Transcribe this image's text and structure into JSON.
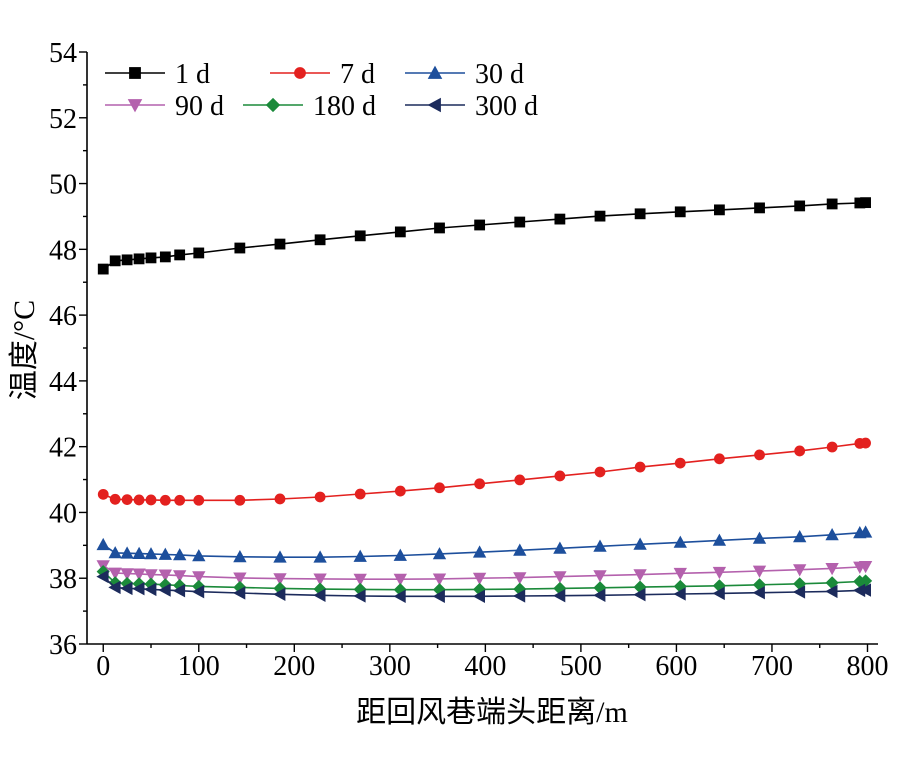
{
  "chart_data": {
    "type": "line",
    "title": "",
    "xlabel": "距回风巷端头距离/m",
    "ylabel": "温度/°C",
    "xlim": [
      -17,
      811
    ],
    "ylim": [
      36,
      54
    ],
    "xticks": [
      0,
      100,
      200,
      300,
      400,
      500,
      600,
      700,
      800
    ],
    "yticks": [
      36,
      38,
      40,
      42,
      44,
      46,
      48,
      50,
      52,
      54
    ],
    "grid": false,
    "legend": {
      "position": "top-left"
    },
    "x": [
      0,
      12.5,
      25,
      37.5,
      50,
      65,
      80,
      100,
      143,
      185,
      227,
      269,
      311,
      352,
      394,
      436,
      478,
      520,
      562,
      604,
      645,
      687,
      729,
      763,
      792,
      798
    ],
    "series": [
      {
        "name": "1 d",
        "color": "#000000",
        "marker": "square",
        "values": [
          47.4,
          47.65,
          47.68,
          47.71,
          47.74,
          47.77,
          47.83,
          47.89,
          48.04,
          48.16,
          48.29,
          48.41,
          48.53,
          48.65,
          48.74,
          48.83,
          48.92,
          49.01,
          49.08,
          49.14,
          49.2,
          49.26,
          49.32,
          49.38,
          49.41,
          49.42
        ]
      },
      {
        "name": "7 d",
        "color": "#e3211f",
        "marker": "circle",
        "values": [
          40.55,
          40.4,
          40.39,
          40.38,
          40.38,
          40.37,
          40.37,
          40.37,
          40.37,
          40.41,
          40.47,
          40.56,
          40.65,
          40.75,
          40.87,
          40.99,
          41.11,
          41.23,
          41.38,
          41.5,
          41.63,
          41.75,
          41.87,
          41.99,
          42.1,
          42.11
        ]
      },
      {
        "name": "30 d",
        "color": "#1d4f9c",
        "marker": "triangle-up",
        "values": [
          39.02,
          38.77,
          38.76,
          38.75,
          38.74,
          38.72,
          38.71,
          38.68,
          38.65,
          38.64,
          38.64,
          38.66,
          38.69,
          38.74,
          38.79,
          38.85,
          38.91,
          38.97,
          39.03,
          39.09,
          39.15,
          39.21,
          39.26,
          39.32,
          39.38,
          39.4
        ]
      },
      {
        "name": "90 d",
        "color": "#b461ad",
        "marker": "triangle-down",
        "values": [
          38.38,
          38.16,
          38.14,
          38.13,
          38.11,
          38.1,
          38.08,
          38.05,
          38.01,
          37.99,
          37.98,
          37.97,
          37.97,
          37.98,
          38.0,
          38.02,
          38.05,
          38.08,
          38.11,
          38.15,
          38.18,
          38.22,
          38.26,
          38.3,
          38.34,
          38.36
        ]
      },
      {
        "name": "180 d",
        "color": "#1b8a3a",
        "marker": "diamond",
        "values": [
          38.2,
          37.86,
          37.84,
          37.83,
          37.82,
          37.8,
          37.78,
          37.75,
          37.72,
          37.69,
          37.67,
          37.66,
          37.65,
          37.65,
          37.66,
          37.67,
          37.69,
          37.71,
          37.73,
          37.75,
          37.77,
          37.8,
          37.83,
          37.86,
          37.9,
          37.92
        ]
      },
      {
        "name": "300 d",
        "color": "#1c2b5c",
        "marker": "triangle-left",
        "values": [
          38.05,
          37.72,
          37.69,
          37.68,
          37.66,
          37.64,
          37.62,
          37.59,
          37.55,
          37.51,
          37.48,
          37.46,
          37.45,
          37.45,
          37.45,
          37.46,
          37.47,
          37.48,
          37.5,
          37.52,
          37.54,
          37.56,
          37.58,
          37.6,
          37.63,
          37.64
        ]
      }
    ]
  }
}
